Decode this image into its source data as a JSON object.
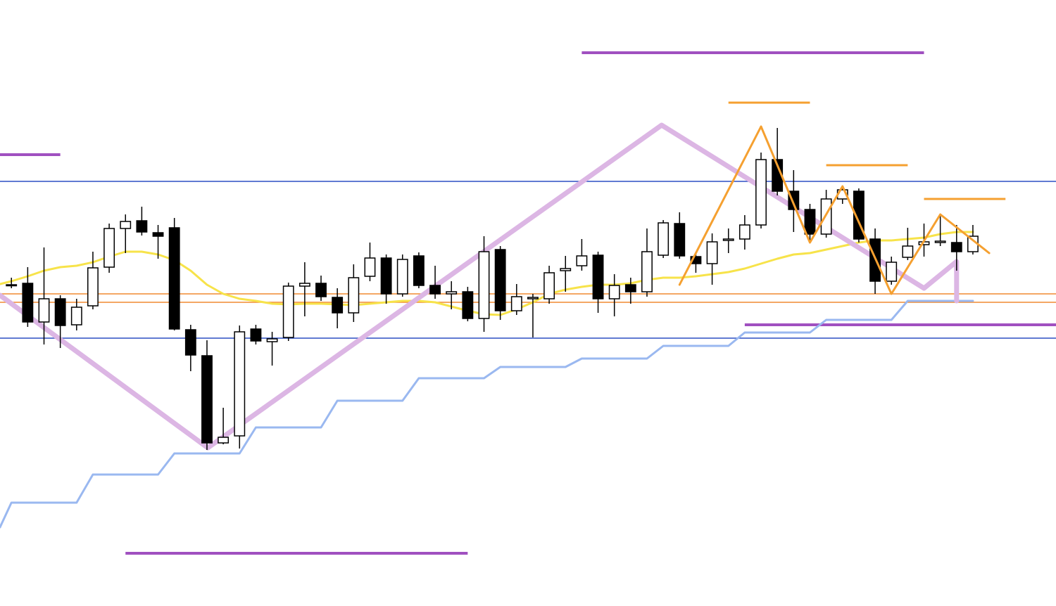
{
  "chart_data": {
    "type": "candlestick",
    "xlim": [
      -0.7,
      64.1
    ],
    "ylim": [
      0,
      862
    ],
    "up_color": "#ffffff",
    "down_color": "#000000",
    "series": [
      {
        "name": "open",
        "values": [
          456,
          459,
          404,
          437,
          400,
          427,
          482,
          537,
          548,
          531,
          538,
          393,
          356,
          232,
          242,
          394,
          376,
          382,
          455,
          459,
          439,
          417,
          469,
          495,
          444,
          498,
          456,
          444,
          447,
          409,
          507,
          420,
          437,
          437,
          477,
          484,
          499,
          437,
          457,
          447,
          499,
          544,
          497,
          487,
          520,
          522,
          542,
          635,
          590,
          564,
          529,
          579,
          590,
          522,
          462,
          496,
          514,
          517,
          517,
          504
        ]
      },
      {
        "name": "high",
        "values": [
          467,
          482,
          510,
          442,
          437,
          504,
          544,
          557,
          568,
          542,
          552,
          400,
          378,
          282,
          399,
          400,
          390,
          460,
          489,
          470,
          452,
          486,
          517,
          500,
          500,
          503,
          484,
          462,
          454,
          526,
          512,
          458,
          444,
          484,
          498,
          522,
          504,
          472,
          467,
          537,
          549,
          560,
          502,
          530,
          537,
          556,
          645,
          680,
          620,
          572,
          592,
          597,
          594,
          537,
          497,
          538,
          544,
          557,
          542,
          542
        ]
      },
      {
        "name": "low",
        "values": [
          452,
          397,
          372,
          367,
          392,
          422,
          474,
          502,
          527,
          494,
          392,
          334,
          222,
          230,
          224,
          372,
          342,
          377,
          412,
          434,
          395,
          404,
          462,
          430,
          440,
          452,
          437,
          422,
          405,
          390,
          407,
          414,
          382,
          430,
          447,
          477,
          417,
          412,
          430,
          440,
          495,
          494,
          474,
          457,
          502,
          507,
          537,
          584,
          532,
          517,
          524,
          572,
          517,
          444,
          457,
          492,
          497,
          512,
          477,
          500
        ]
      },
      {
        "name": "close",
        "values": [
          457,
          404,
          437,
          399,
          425,
          481,
          537,
          547,
          532,
          526,
          394,
          357,
          232,
          240,
          390,
          377,
          380,
          455,
          459,
          440,
          417,
          467,
          495,
          444,
          493,
          456,
          444,
          447,
          409,
          504,
          420,
          440,
          439,
          474,
          480,
          498,
          437,
          456,
          447,
          504,
          545,
          498,
          487,
          518,
          522,
          542,
          635,
          590,
          564,
          529,
          579,
          592,
          522,
          462,
          489,
          512,
          518,
          519,
          504,
          526
        ]
      }
    ],
    "overlays": [
      {
        "color": "#f7e34a",
        "width": 3,
        "x": [
          -0.7,
          0,
          1,
          2,
          3,
          4,
          5,
          6,
          7,
          8,
          9,
          10,
          11,
          12,
          13,
          14,
          15,
          16,
          17,
          18,
          19,
          20,
          21,
          22,
          23,
          24,
          25,
          26,
          27,
          28,
          29,
          30,
          31,
          32,
          33,
          34,
          35,
          36,
          37,
          38,
          39,
          40,
          41,
          42,
          43,
          44,
          45,
          46,
          47,
          48,
          49,
          50,
          51,
          52,
          53,
          54,
          55,
          56,
          57,
          58,
          59
        ],
        "values": [
          458,
          462,
          469,
          477,
          482,
          484,
          489,
          497,
          504,
          504,
          500,
          492,
          477,
          457,
          444,
          437,
          434,
          430,
          429,
          430,
          430,
          429,
          428,
          430,
          432,
          434,
          434,
          432,
          426,
          420,
          415,
          414,
          422,
          432,
          444,
          450,
          454,
          457,
          457,
          459,
          464,
          467,
          467,
          469,
          472,
          475,
          480,
          487,
          494,
          500,
          502,
          507,
          512,
          517,
          520,
          520,
          522,
          524,
          529,
          532,
          532
        ]
      },
      {
        "color": "#9ab8f0",
        "width": 3,
        "x": [
          -0.7,
          0,
          4,
          5,
          9,
          10,
          14,
          15,
          19,
          20,
          24,
          25,
          29,
          30,
          34,
          35,
          39,
          40,
          44,
          45,
          49,
          50,
          54,
          55,
          59
        ],
        "values": [
          112,
          147,
          147,
          187,
          187,
          217,
          217,
          254,
          254,
          292,
          292,
          324,
          324,
          340,
          340,
          352,
          352,
          370,
          370,
          389,
          389,
          407,
          407,
          434,
          434
        ]
      },
      {
        "color": "#dcb6e4",
        "width": 7,
        "x": [
          -0.7,
          12.05,
          39.9,
          56.0,
          58.0,
          58.0
        ],
        "values": [
          442,
          225,
          684,
          452,
          490,
          434
        ]
      },
      {
        "color": "#f5a030",
        "width": 3,
        "x": [
          41,
          46,
          49,
          51,
          54,
          57,
          60
        ],
        "values": [
          457,
          682,
          517,
          597,
          444,
          557,
          502
        ]
      }
    ],
    "levels": [
      {
        "color": "#2b4fc4",
        "width": 1.5,
        "value": 604,
        "from": -0.7,
        "to": 64.1
      },
      {
        "color": "#2b4fc4",
        "width": 1.5,
        "value": 381,
        "from": -0.7,
        "to": 64.1
      },
      {
        "color": "#f08a30",
        "width": 1.5,
        "value": 444,
        "from": -0.7,
        "to": 64.1
      },
      {
        "color": "#f08a30",
        "width": 1.5,
        "value": 432,
        "from": -0.7,
        "to": 64.1
      },
      {
        "color": "#a050c0",
        "width": 4,
        "value": 787,
        "from": 35,
        "to": 56
      },
      {
        "color": "#a050c0",
        "width": 4,
        "value": 642,
        "from": -0.7,
        "to": 3
      },
      {
        "color": "#a050c0",
        "width": 4,
        "value": 75,
        "from": 7,
        "to": 28
      },
      {
        "color": "#a050c0",
        "width": 4,
        "value": 400,
        "from": 45,
        "to": 64.1
      },
      {
        "color": "#f5a030",
        "width": 3,
        "value": 716,
        "from": 44,
        "to": 49
      },
      {
        "color": "#f5a030",
        "width": 3,
        "value": 627,
        "from": 50,
        "to": 55
      },
      {
        "color": "#f5a030",
        "width": 3,
        "value": 579,
        "from": 56,
        "to": 61
      }
    ]
  }
}
